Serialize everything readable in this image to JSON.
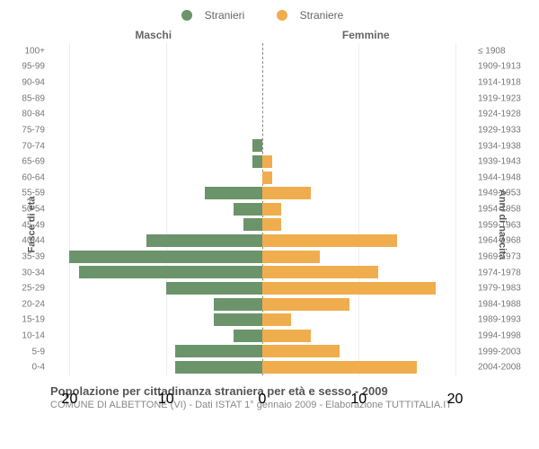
{
  "legend": {
    "male_label": "Stranieri",
    "female_label": "Straniere"
  },
  "header": {
    "male": "Maschi",
    "female": "Femmine"
  },
  "yaxis_left_title": "Fasce di età",
  "yaxis_right_title": "Anni di nascita",
  "title": "Popolazione per cittadinanza straniera per età e sesso - 2009",
  "subtitle": "COMUNE DI ALBETTONE (VI) - Dati ISTAT 1° gennaio 2009 - Elaborazione TUTTITALIA.IT",
  "colors": {
    "male": "#6b946b",
    "female": "#f0ad4e",
    "background": "#ffffff",
    "grid": "#eeeeee",
    "divider": "#888888",
    "text": "#777777"
  },
  "chart": {
    "type": "pyramid",
    "x_max": 22,
    "x_ticks": [
      0,
      10,
      20
    ],
    "rows": [
      {
        "age": "100+",
        "birth": "≤ 1908",
        "m": 0,
        "f": 0
      },
      {
        "age": "95-99",
        "birth": "1909-1913",
        "m": 0,
        "f": 0
      },
      {
        "age": "90-94",
        "birth": "1914-1918",
        "m": 0,
        "f": 0
      },
      {
        "age": "85-89",
        "birth": "1919-1923",
        "m": 0,
        "f": 0
      },
      {
        "age": "80-84",
        "birth": "1924-1928",
        "m": 0,
        "f": 0
      },
      {
        "age": "75-79",
        "birth": "1929-1933",
        "m": 0,
        "f": 0
      },
      {
        "age": "70-74",
        "birth": "1934-1938",
        "m": 1,
        "f": 0
      },
      {
        "age": "65-69",
        "birth": "1939-1943",
        "m": 1,
        "f": 1
      },
      {
        "age": "60-64",
        "birth": "1944-1948",
        "m": 0,
        "f": 1
      },
      {
        "age": "55-59",
        "birth": "1949-1953",
        "m": 6,
        "f": 5
      },
      {
        "age": "50-54",
        "birth": "1954-1958",
        "m": 3,
        "f": 2
      },
      {
        "age": "45-49",
        "birth": "1959-1963",
        "m": 2,
        "f": 2
      },
      {
        "age": "40-44",
        "birth": "1964-1968",
        "m": 12,
        "f": 14
      },
      {
        "age": "35-39",
        "birth": "1969-1973",
        "m": 20,
        "f": 6
      },
      {
        "age": "30-34",
        "birth": "1974-1978",
        "m": 19,
        "f": 12
      },
      {
        "age": "25-29",
        "birth": "1979-1983",
        "m": 10,
        "f": 18
      },
      {
        "age": "20-24",
        "birth": "1984-1988",
        "m": 5,
        "f": 9
      },
      {
        "age": "15-19",
        "birth": "1989-1993",
        "m": 5,
        "f": 3
      },
      {
        "age": "10-14",
        "birth": "1994-1998",
        "m": 3,
        "f": 5
      },
      {
        "age": "5-9",
        "birth": "1999-2003",
        "m": 9,
        "f": 8
      },
      {
        "age": "0-4",
        "birth": "2004-2008",
        "m": 9,
        "f": 16
      }
    ]
  }
}
